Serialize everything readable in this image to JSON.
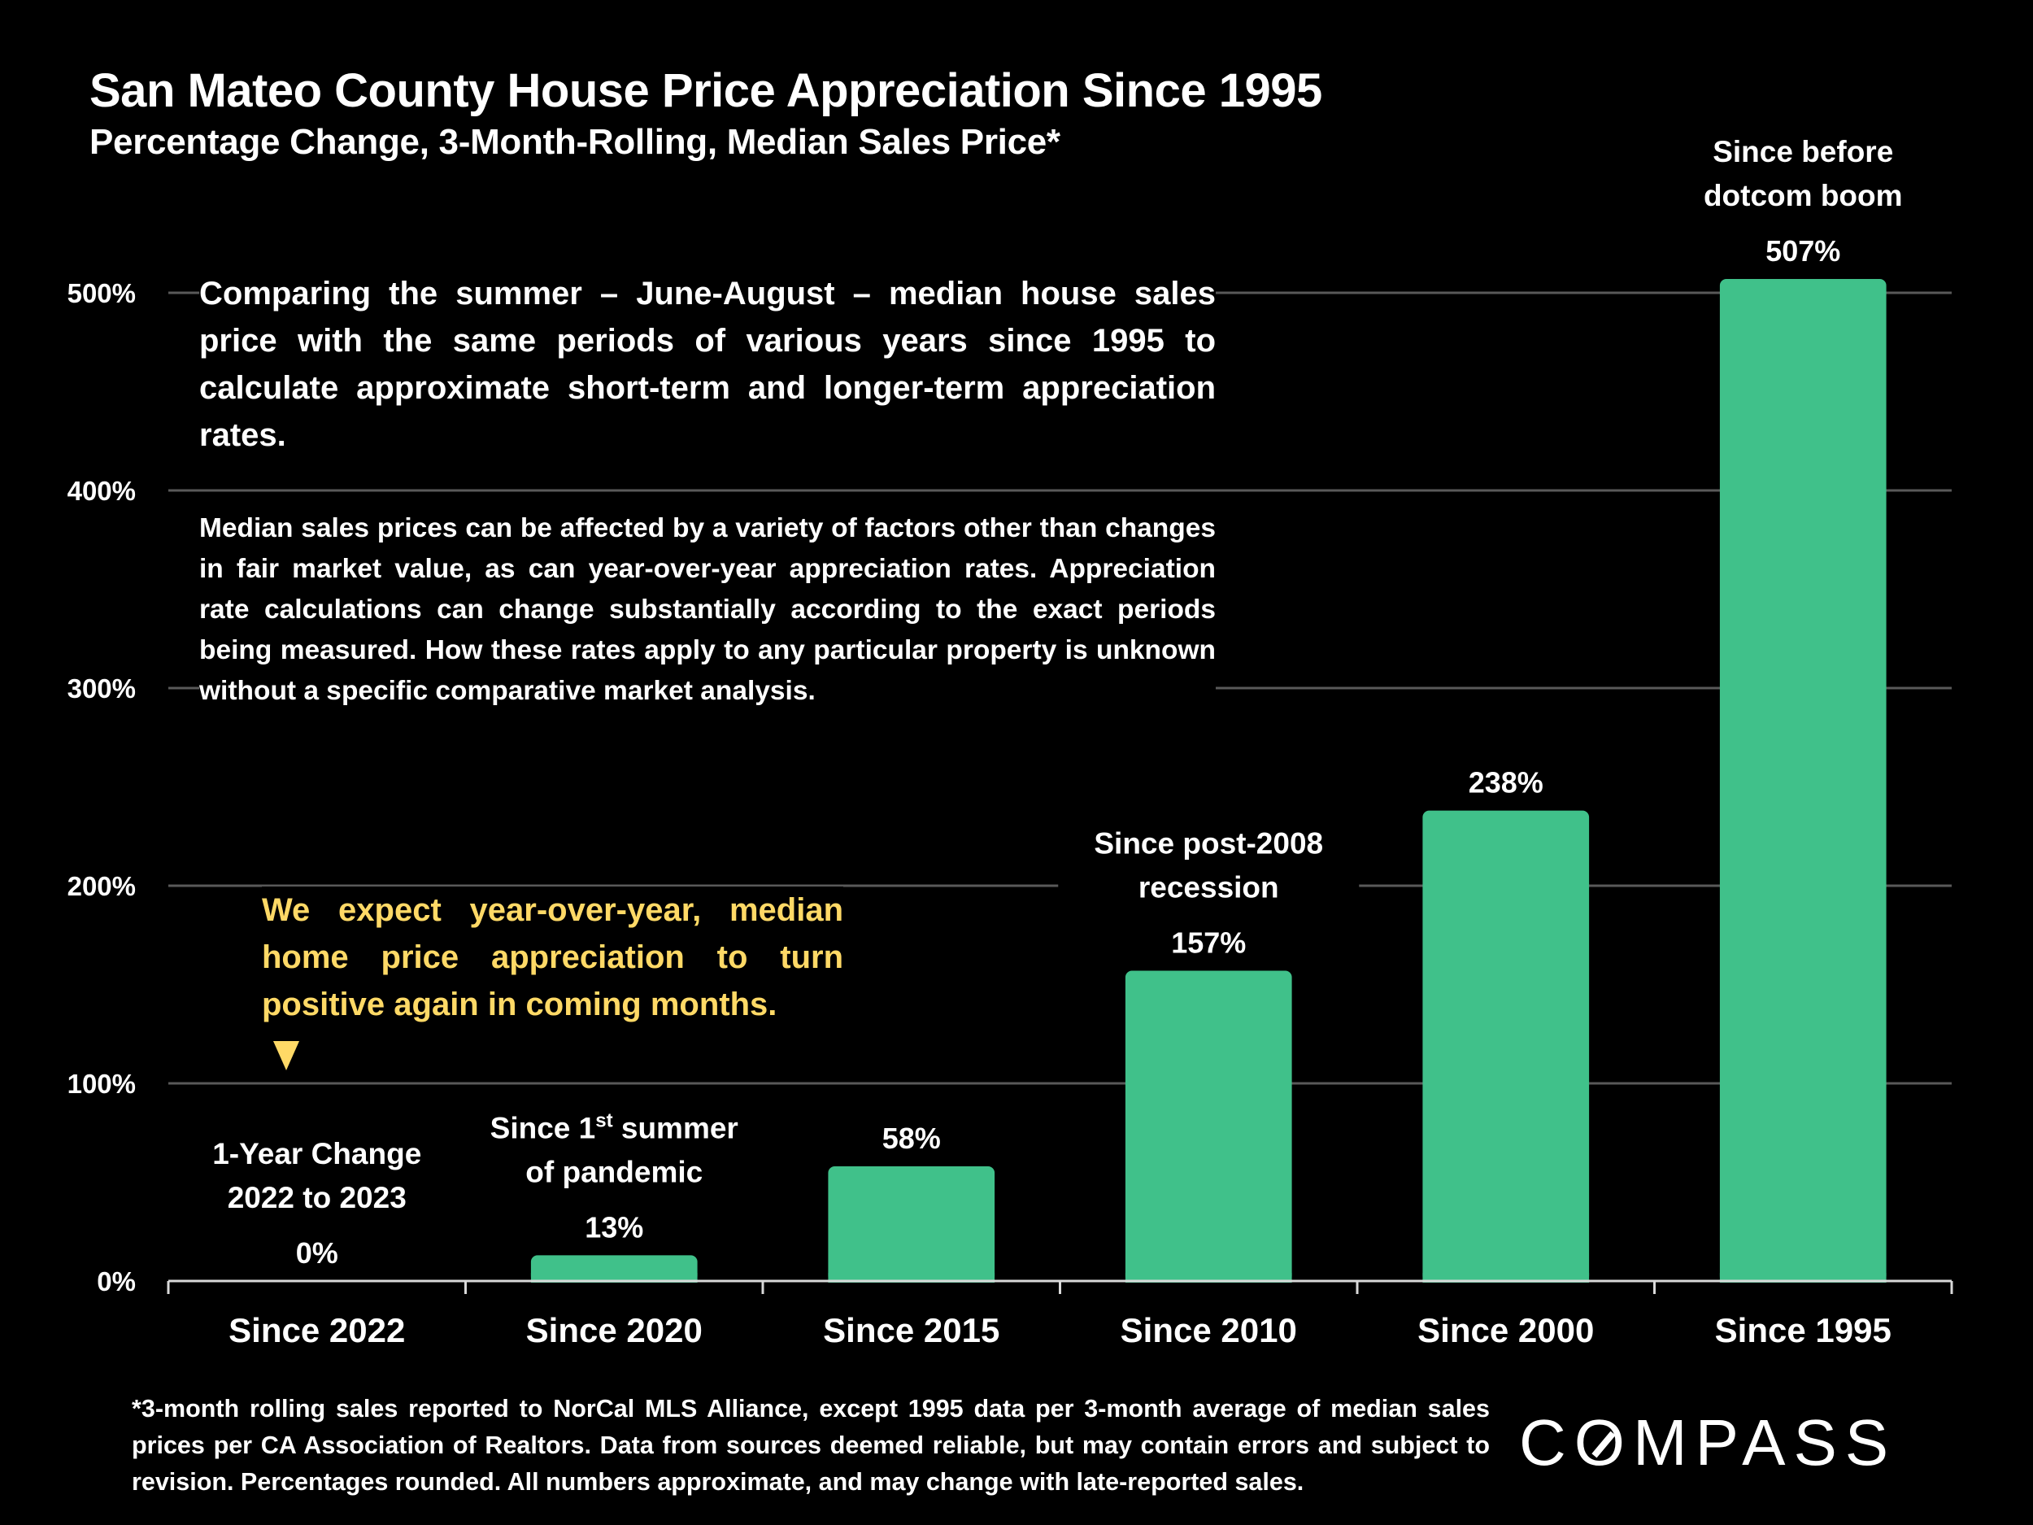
{
  "title": "San Mateo County House Price Appreciation Since 1995",
  "subtitle": "Percentage Change, 3-Month-Rolling, Median Sales Price*",
  "description": {
    "paragraph1": "Comparing the summer – June-August – median house sales price with the same periods of various years since 1995 to calculate approximate short-term and longer-term appreciation rates.",
    "paragraph2": "Median sales prices can be affected by a variety of factors other than changes in fair market value, as can year-over-year appreciation rates. Appreciation rate calculations can change substantially according to the exact periods being measured. How these rates apply to any particular property is unknown without a specific comparative market analysis."
  },
  "note": {
    "text": "We expect year-over-year, median home price appreciation to turn positive again in coming months.",
    "color": "#FFD966",
    "arrow_icon": "down-triangle-icon"
  },
  "footnote": "*3-month rolling sales reported to NorCal MLS Alliance, except 1995 data per 3-month average of median sales prices per CA Association of Realtors. Data from sources deemed reliable, but may contain errors and subject to revision. Percentages rounded. All numbers approximate, and may change with late-reported sales.",
  "logo": {
    "text_before": "C",
    "text_o": "O",
    "text_after": "MPASS"
  },
  "chart_data": {
    "type": "bar",
    "title": "San Mateo County House Price Appreciation Since 1995",
    "subtitle": "Percentage Change, 3-Month-Rolling, Median Sales Price*",
    "xlabel": "",
    "ylabel": "",
    "categories": [
      "Since 2022",
      "Since 2020",
      "Since 2015",
      "Since 2010",
      "Since 2000",
      "Since 1995"
    ],
    "values": [
      0,
      13,
      58,
      157,
      238,
      507
    ],
    "value_labels": [
      "0%",
      "13%",
      "58%",
      "157%",
      "238%",
      "507%"
    ],
    "annotations": [
      [
        "1-Year Change",
        "2022 to 2023"
      ],
      [
        "Since 1st summer",
        "of pandemic"
      ],
      [],
      [
        "Since post-2008",
        "recession"
      ],
      [],
      [
        "Since before",
        "dotcom boom"
      ]
    ],
    "yticks": [
      0,
      100,
      200,
      300,
      400,
      500
    ],
    "ytick_labels": [
      "0%",
      "100%",
      "200%",
      "300%",
      "400%",
      "500%"
    ],
    "ylim": [
      0,
      500
    ],
    "grid": true,
    "legend": "none",
    "bar_color": "#40C18A",
    "gridline_color": "#595959"
  }
}
